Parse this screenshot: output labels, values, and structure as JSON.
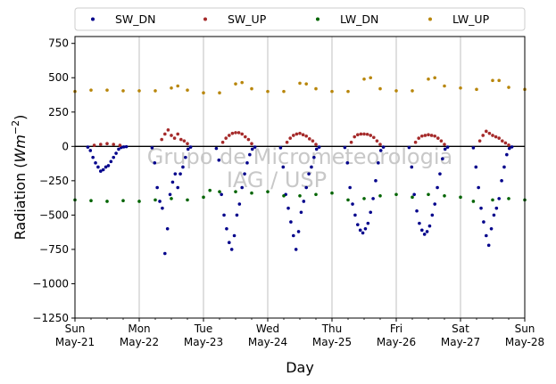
{
  "chart_data": {
    "type": "scatter",
    "xlabel": "Day",
    "ylabel_main": "Radiation (",
    "ylabel_unit_base": "Wm",
    "ylabel_unit_exp": "−2",
    "ylabel_close": ")",
    "ylim": [
      -1250,
      800
    ],
    "xlim": [
      0,
      7
    ],
    "yticks": [
      {
        "value": 750,
        "label": "750"
      },
      {
        "value": 500,
        "label": "500"
      },
      {
        "value": 250,
        "label": "250"
      },
      {
        "value": 0,
        "label": "0"
      },
      {
        "value": -250,
        "label": "−250"
      },
      {
        "value": -500,
        "label": "−500"
      },
      {
        "value": -750,
        "label": "−750"
      },
      {
        "value": -1000,
        "label": "−1000"
      },
      {
        "value": -1250,
        "label": "−1250"
      }
    ],
    "xticks": [
      {
        "value": 0,
        "day": "Sun",
        "date": "May-21"
      },
      {
        "value": 1,
        "day": "Mon",
        "date": "May-22"
      },
      {
        "value": 2,
        "day": "Tue",
        "date": "May-23"
      },
      {
        "value": 3,
        "day": "Wed",
        "date": "May-24"
      },
      {
        "value": 4,
        "day": "Thu",
        "date": "May-25"
      },
      {
        "value": 5,
        "day": "Fri",
        "date": "May-26"
      },
      {
        "value": 6,
        "day": "Sat",
        "date": "May-27"
      },
      {
        "value": 7,
        "day": "Sun",
        "date": "May-28"
      }
    ],
    "grid": "vertical",
    "legend_position": "top",
    "watermark": [
      "Grupo de Micrometeorologia",
      "IAG / USP"
    ],
    "series": [
      {
        "name": "SW_DN",
        "color": "#00008b",
        "x": [
          0.2,
          0.24,
          0.28,
          0.32,
          0.36,
          0.4,
          0.44,
          0.48,
          0.52,
          0.56,
          0.6,
          0.64,
          0.68,
          0.72,
          0.76,
          0.8,
          1.2,
          1.24,
          1.28,
          1.32,
          1.36,
          1.4,
          1.44,
          1.48,
          1.52,
          1.56,
          1.6,
          1.64,
          1.68,
          1.72,
          1.76,
          1.8,
          2.2,
          2.24,
          2.28,
          2.32,
          2.36,
          2.4,
          2.44,
          2.48,
          2.52,
          2.56,
          2.6,
          2.64,
          2.68,
          2.72,
          2.76,
          2.8,
          3.2,
          3.24,
          3.28,
          3.32,
          3.36,
          3.4,
          3.44,
          3.48,
          3.52,
          3.56,
          3.6,
          3.64,
          3.68,
          3.72,
          3.76,
          3.8,
          4.2,
          4.24,
          4.28,
          4.32,
          4.36,
          4.4,
          4.44,
          4.48,
          4.52,
          4.56,
          4.6,
          4.64,
          4.68,
          4.72,
          4.76,
          4.8,
          5.2,
          5.24,
          5.28,
          5.32,
          5.36,
          5.4,
          5.44,
          5.48,
          5.52,
          5.56,
          5.6,
          5.64,
          5.68,
          5.72,
          5.76,
          5.8,
          6.2,
          6.24,
          6.28,
          6.32,
          6.36,
          6.4,
          6.44,
          6.48,
          6.52,
          6.56,
          6.6,
          6.64,
          6.68,
          6.72,
          6.76,
          6.8
        ],
        "y": [
          -5,
          -30,
          -80,
          -120,
          -150,
          -180,
          -170,
          -150,
          -140,
          -110,
          -80,
          -50,
          -20,
          -8,
          -4,
          -2,
          -10,
          -120,
          -300,
          -400,
          -450,
          -780,
          -600,
          -350,
          -260,
          -200,
          -300,
          -200,
          -150,
          -80,
          -20,
          -5,
          -15,
          -100,
          -350,
          -500,
          -600,
          -700,
          -750,
          -650,
          -500,
          -420,
          -300,
          -200,
          -120,
          -60,
          -20,
          -5,
          -10,
          -150,
          -350,
          -450,
          -550,
          -650,
          -750,
          -620,
          -480,
          -400,
          -300,
          -200,
          -150,
          -80,
          -20,
          -5,
          -8,
          -120,
          -300,
          -420,
          -500,
          -570,
          -610,
          -630,
          -600,
          -560,
          -480,
          -380,
          -250,
          -120,
          -30,
          -5,
          -8,
          -150,
          -350,
          -470,
          -560,
          -610,
          -640,
          -620,
          -580,
          -500,
          -420,
          -300,
          -200,
          -90,
          -20,
          -5,
          -10,
          -150,
          -300,
          -450,
          -550,
          -650,
          -720,
          -600,
          -500,
          -450,
          -380,
          -250,
          -150,
          -60,
          -15,
          -4
        ]
      },
      {
        "name": "SW_UP",
        "color": "#a52a2a",
        "x": [
          0.3,
          0.4,
          0.5,
          0.6,
          0.7,
          1.35,
          1.4,
          1.45,
          1.5,
          1.55,
          1.6,
          1.65,
          1.7,
          1.75,
          2.3,
          2.35,
          2.4,
          2.45,
          2.5,
          2.55,
          2.6,
          2.65,
          2.7,
          2.75,
          3.3,
          3.35,
          3.4,
          3.45,
          3.5,
          3.55,
          3.6,
          3.65,
          3.7,
          3.75,
          4.3,
          4.35,
          4.4,
          4.45,
          4.5,
          4.55,
          4.6,
          4.65,
          4.7,
          4.75,
          5.3,
          5.35,
          5.4,
          5.45,
          5.5,
          5.55,
          5.6,
          5.65,
          5.7,
          5.75,
          6.3,
          6.35,
          6.4,
          6.45,
          6.5,
          6.55,
          6.6,
          6.65,
          6.7,
          6.75
        ],
        "y": [
          8,
          15,
          20,
          15,
          8,
          50,
          90,
          120,
          80,
          60,
          90,
          50,
          40,
          20,
          30,
          60,
          80,
          95,
          100,
          100,
          90,
          70,
          50,
          20,
          30,
          60,
          80,
          90,
          95,
          85,
          75,
          55,
          40,
          15,
          30,
          70,
          85,
          90,
          90,
          88,
          80,
          65,
          40,
          15,
          30,
          60,
          75,
          80,
          85,
          80,
          75,
          60,
          40,
          15,
          40,
          80,
          110,
          95,
          80,
          70,
          60,
          40,
          25,
          10
        ]
      },
      {
        "name": "LW_DN",
        "color": "#006400",
        "x": [
          0,
          0.25,
          0.5,
          0.75,
          1,
          1.25,
          1.5,
          1.75,
          2,
          2.1,
          2.25,
          2.5,
          2.75,
          3,
          3.25,
          3.5,
          3.75,
          4,
          4.25,
          4.5,
          4.75,
          5,
          5.25,
          5.5,
          5.75,
          6,
          6.2,
          6.5,
          6.75,
          7
        ],
        "y": [
          -390,
          -395,
          -400,
          -395,
          -400,
          -390,
          -380,
          -390,
          -370,
          -320,
          -330,
          -330,
          -340,
          -330,
          -360,
          -360,
          -350,
          -340,
          -390,
          -380,
          -360,
          -350,
          -370,
          -350,
          -360,
          -370,
          -400,
          -390,
          -380,
          -390
        ]
      },
      {
        "name": "LW_UP",
        "color": "#b8860b",
        "x": [
          0,
          0.25,
          0.5,
          0.75,
          1,
          1.25,
          1.5,
          1.6,
          1.75,
          2,
          2.25,
          2.5,
          2.6,
          2.75,
          3,
          3.25,
          3.5,
          3.6,
          3.75,
          4,
          4.25,
          4.5,
          4.6,
          4.75,
          5,
          5.25,
          5.5,
          5.6,
          5.75,
          6,
          6.25,
          6.5,
          6.6,
          6.75,
          7
        ],
        "y": [
          400,
          410,
          410,
          405,
          405,
          405,
          425,
          440,
          410,
          390,
          390,
          455,
          465,
          420,
          400,
          400,
          460,
          455,
          420,
          400,
          400,
          490,
          500,
          420,
          405,
          405,
          490,
          500,
          440,
          425,
          415,
          480,
          480,
          430,
          415
        ]
      }
    ]
  }
}
